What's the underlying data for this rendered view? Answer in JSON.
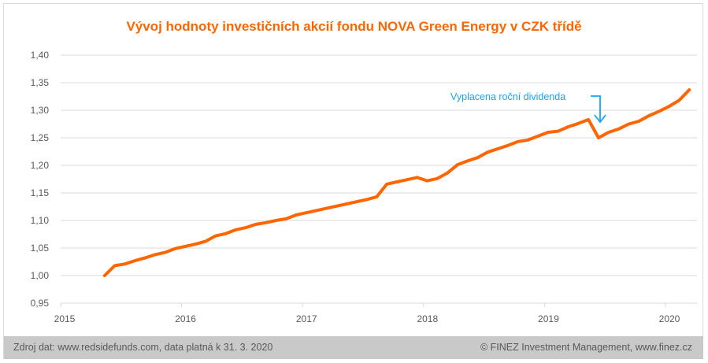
{
  "chart_data": {
    "type": "line",
    "title": "Vývoj hodnoty investičních akcií fondu NOVA Green Energy v CZK třídě",
    "xlabel": "",
    "ylabel": "",
    "x_tick_labels": [
      "2015",
      "2016",
      "2017",
      "2018",
      "2019",
      "2020"
    ],
    "y_tick_labels": [
      "0,95",
      "1,00",
      "1,05",
      "1,10",
      "1,15",
      "1,20",
      "1,25",
      "1,30",
      "1,35",
      "1,40"
    ],
    "ylim": [
      0.95,
      1.4
    ],
    "xlim": [
      2015,
      2020.25
    ],
    "grid": true,
    "series": [
      {
        "name": "NOVA Green Energy CZK",
        "color": "#ff6600",
        "start_month": "2015-05",
        "frequency": "monthly",
        "values": [
          1.0,
          1.018,
          1.021,
          1.027,
          1.032,
          1.038,
          1.042,
          1.049,
          1.053,
          1.057,
          1.062,
          1.072,
          1.076,
          1.083,
          1.087,
          1.093,
          1.096,
          1.1,
          1.103,
          1.11,
          1.114,
          1.118,
          1.122,
          1.126,
          1.13,
          1.134,
          1.138,
          1.143,
          1.166,
          1.17,
          1.174,
          1.178,
          1.172,
          1.176,
          1.186,
          1.201,
          1.208,
          1.214,
          1.224,
          1.23,
          1.236,
          1.243,
          1.246,
          1.253,
          1.26,
          1.262,
          1.27,
          1.276,
          1.283,
          1.25,
          1.26,
          1.266,
          1.275,
          1.28,
          1.29,
          1.298,
          1.307,
          1.318,
          1.337
        ]
      }
    ],
    "annotations": [
      {
        "text": "Vyplacena roční dividenda",
        "color": "#1aa3f5",
        "x": 2019.5
      }
    ]
  },
  "footer": {
    "source": "Zdroj dat: www.redsidefunds.com, data platná k 31. 3. 2020",
    "copyright": "© FINEZ Investment Management, www.finez.cz"
  }
}
